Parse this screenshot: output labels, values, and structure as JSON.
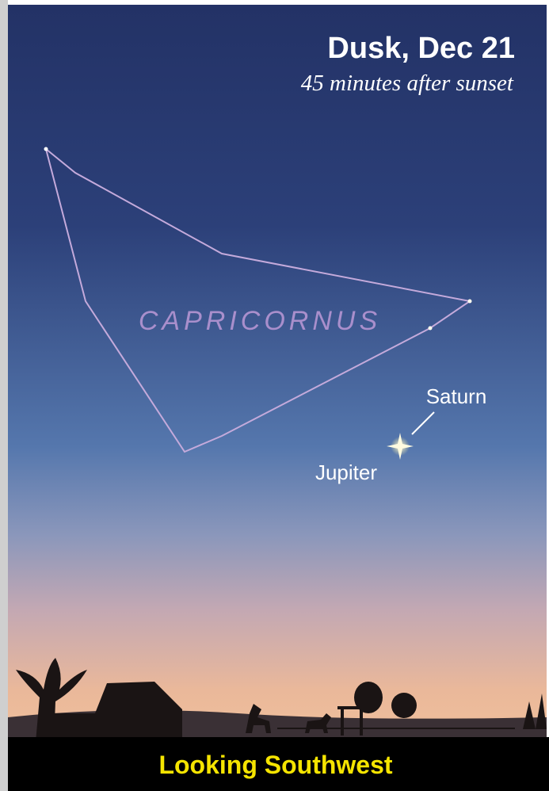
{
  "header": {
    "title": "Dusk, Dec 21",
    "subtitle": "45 minutes after sunset"
  },
  "constellation": {
    "label": "CAPRICORNUS"
  },
  "planets": [
    {
      "label": "Saturn"
    },
    {
      "label": "Jupiter"
    }
  ],
  "footer": {
    "label": "Looking Southwest"
  }
}
